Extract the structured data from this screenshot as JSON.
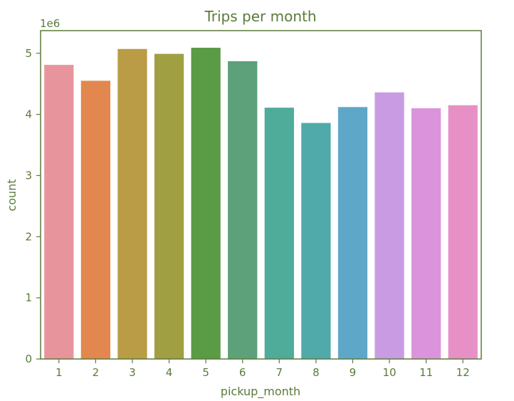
{
  "chart_data": {
    "type": "bar",
    "title": "Trips per month",
    "xlabel": "pickup_month",
    "ylabel": "count",
    "y_offset_label": "1e6",
    "categories": [
      "1",
      "2",
      "3",
      "4",
      "5",
      "6",
      "7",
      "8",
      "9",
      "10",
      "11",
      "12"
    ],
    "values": [
      4.81,
      4.55,
      5.07,
      4.99,
      5.09,
      4.87,
      4.11,
      3.86,
      4.12,
      4.36,
      4.1,
      4.15
    ],
    "ylim": [
      0,
      5.37
    ],
    "yticks": [
      "0",
      "1",
      "2",
      "3",
      "4",
      "5"
    ],
    "grid": false,
    "legend": "none",
    "colors": [
      "#e8949d",
      "#e2884f",
      "#b99c45",
      "#a09f42",
      "#5a9b45",
      "#5ca17a",
      "#4fab9a",
      "#50aaaa",
      "#5fa7c8",
      "#c89be2",
      "#db94dc",
      "#e690c6"
    ],
    "axis_color": "#5b7a3a"
  }
}
